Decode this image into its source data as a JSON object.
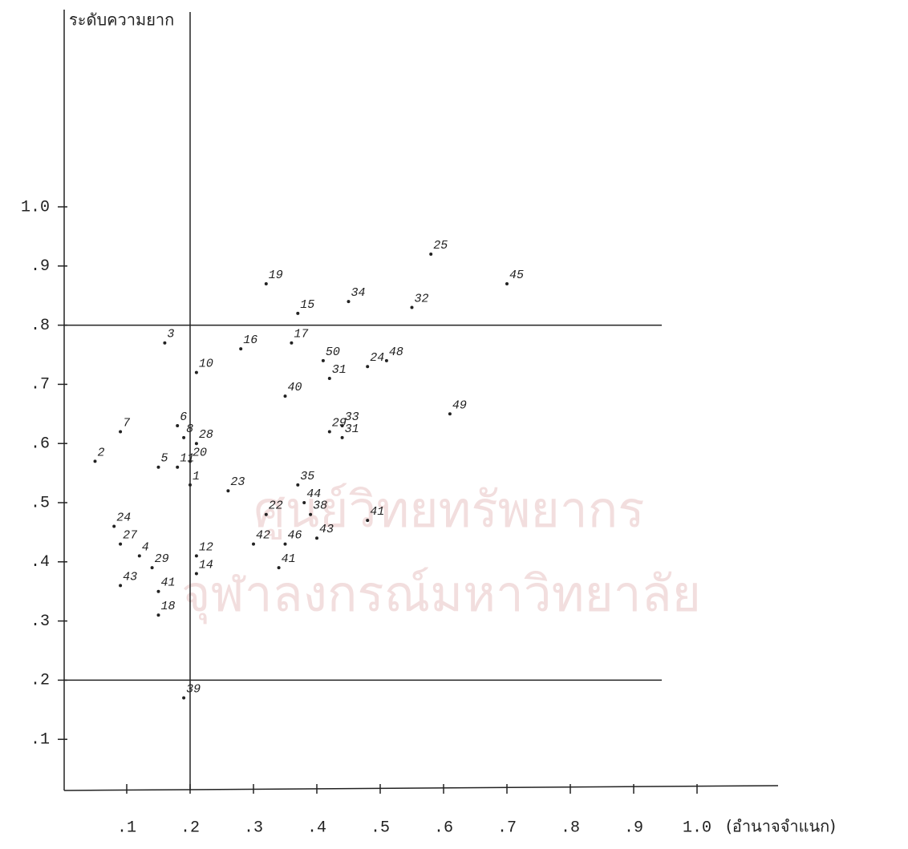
{
  "chart_data": {
    "type": "scatter",
    "y_label": "ระดับความยาก",
    "x_label": "(อำนาจจำแนก)",
    "watermark": [
      "ศูนย์วิทยทรัพยากร",
      "จุฬาลงกรณ์มหาวิทยาลัย"
    ],
    "point_labels": [
      "25",
      "45",
      "19",
      "15",
      "34",
      "32",
      "3",
      "16",
      "17",
      "10",
      "50",
      "24",
      "48",
      "31",
      "40",
      "49",
      "29",
      "33",
      "31",
      "6",
      "8",
      "28",
      "7",
      "2",
      "5",
      "11",
      "20",
      "1",
      "23",
      "35",
      "41",
      "22",
      "44",
      "38",
      "24",
      "27",
      "4",
      "12",
      "14",
      "42",
      "46",
      "43",
      "41",
      "29",
      "43",
      "41",
      "18",
      "39"
    ],
    "x": [
      0.58,
      0.7,
      0.32,
      0.37,
      0.45,
      0.55,
      0.16,
      0.28,
      0.36,
      0.21,
      0.41,
      0.48,
      0.51,
      0.42,
      0.35,
      0.61,
      0.42,
      0.44,
      0.44,
      0.18,
      0.19,
      0.21,
      0.09,
      0.05,
      0.15,
      0.18,
      0.2,
      0.2,
      0.26,
      0.37,
      0.48,
      0.32,
      0.38,
      0.39,
      0.08,
      0.09,
      0.12,
      0.21,
      0.21,
      0.3,
      0.35,
      0.4,
      0.34,
      0.14,
      0.09,
      0.15,
      0.15,
      0.19
    ],
    "values": [
      0.92,
      0.87,
      0.87,
      0.82,
      0.84,
      0.83,
      0.77,
      0.76,
      0.77,
      0.72,
      0.74,
      0.73,
      0.74,
      0.71,
      0.68,
      0.65,
      0.62,
      0.63,
      0.61,
      0.63,
      0.61,
      0.6,
      0.62,
      0.57,
      0.56,
      0.56,
      0.57,
      0.53,
      0.52,
      0.53,
      0.47,
      0.48,
      0.5,
      0.48,
      0.46,
      0.43,
      0.41,
      0.41,
      0.38,
      0.43,
      0.43,
      0.44,
      0.39,
      0.39,
      0.36,
      0.35,
      0.31,
      0.17
    ],
    "color": "#222222",
    "reference_lines": {
      "y": [
        0.8,
        0.2
      ],
      "x": [
        0.2
      ]
    },
    "xlim": [
      0,
      1.0
    ],
    "ylim": [
      0,
      1.0
    ],
    "xticks": [
      {
        "value": 0.1,
        "label": ".1"
      },
      {
        "value": 0.2,
        "label": ".2"
      },
      {
        "value": 0.3,
        "label": ".3"
      },
      {
        "value": 0.4,
        "label": ".4"
      },
      {
        "value": 0.5,
        "label": ".5"
      },
      {
        "value": 0.6,
        "label": ".6"
      },
      {
        "value": 0.7,
        "label": ".7"
      },
      {
        "value": 0.8,
        "label": ".8"
      },
      {
        "value": 0.9,
        "label": ".9"
      },
      {
        "value": 1.0,
        "label": "1.0"
      }
    ],
    "yticks": [
      {
        "value": 0.1,
        "label": ".1"
      },
      {
        "value": 0.2,
        "label": ".2"
      },
      {
        "value": 0.3,
        "label": ".3"
      },
      {
        "value": 0.4,
        "label": ".4"
      },
      {
        "value": 0.5,
        "label": ".5"
      },
      {
        "value": 0.6,
        "label": ".6"
      },
      {
        "value": 0.7,
        "label": ".7"
      },
      {
        "value": 0.8,
        "label": ".8"
      },
      {
        "value": 0.9,
        "label": ".9"
      },
      {
        "value": 1.0,
        "label": "1.0"
      }
    ]
  }
}
